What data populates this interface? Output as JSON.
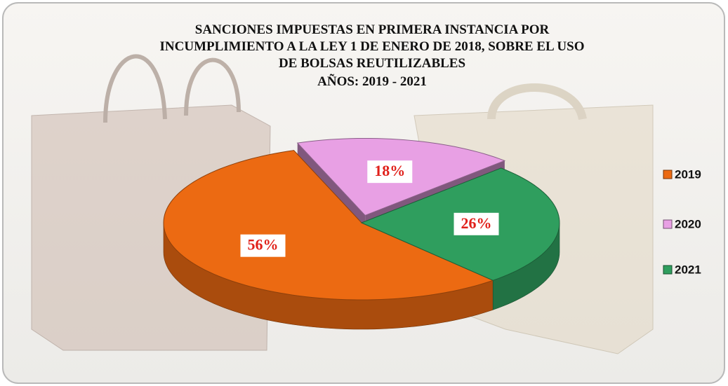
{
  "chart_data": {
    "type": "pie",
    "title": [
      "SANCIONES IMPUESTAS EN PRIMERA INSTANCIA POR",
      "INCUMPLIMIENTO A LA LEY 1 DE ENERO DE 2018, SOBRE EL USO",
      "DE BOLSAS REUTILIZABLES"
    ],
    "subtitle": "AÑOS: 2019 - 2021",
    "categories": [
      "2019",
      "2020",
      "2021"
    ],
    "values": [
      56,
      18,
      26
    ],
    "value_labels": [
      "56%",
      "18%",
      "26%"
    ],
    "colors": [
      "#ec6a12",
      "#e8a0e4",
      "#2f9e5e"
    ],
    "legend": "right"
  }
}
